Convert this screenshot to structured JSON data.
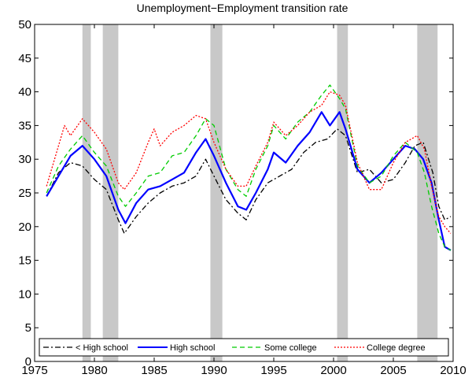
{
  "chart_data": {
    "type": "line",
    "title": "Unemployment−Employment transition rate",
    "xlabel": "",
    "ylabel": "",
    "xlim": [
      1975,
      2010
    ],
    "ylim": [
      0,
      50
    ],
    "x_ticks": [
      1975,
      1980,
      1985,
      1990,
      1995,
      2000,
      2005,
      2010
    ],
    "y_ticks": [
      0,
      5,
      10,
      15,
      20,
      25,
      30,
      35,
      40,
      45,
      50
    ],
    "grid": false,
    "legend_position": "bottom",
    "recession_shading": [
      [
        1979.0,
        1979.7
      ],
      [
        1980.7,
        1982.0
      ],
      [
        1989.7,
        1990.7
      ],
      [
        2000.3,
        2001.2
      ],
      [
        2007.0,
        2008.7
      ]
    ],
    "series": [
      {
        "name": "< High school",
        "color": "#000000",
        "dash": "dash-dot",
        "points": [
          [
            1976.0,
            24.5
          ],
          [
            1977.0,
            28.0
          ],
          [
            1978.0,
            29.5
          ],
          [
            1979.0,
            29.0
          ],
          [
            1980.0,
            27.0
          ],
          [
            1981.0,
            25.5
          ],
          [
            1982.0,
            21.0
          ],
          [
            1982.5,
            19.0
          ],
          [
            1983.5,
            21.5
          ],
          [
            1984.5,
            23.5
          ],
          [
            1985.5,
            25.0
          ],
          [
            1986.5,
            26.0
          ],
          [
            1987.5,
            26.5
          ],
          [
            1988.5,
            27.5
          ],
          [
            1989.3,
            30.0
          ],
          [
            1990.0,
            27.5
          ],
          [
            1991.0,
            24.0
          ],
          [
            1992.0,
            22.0
          ],
          [
            1992.7,
            21.0
          ],
          [
            1993.5,
            24.0
          ],
          [
            1994.5,
            26.5
          ],
          [
            1995.5,
            27.5
          ],
          [
            1996.5,
            28.5
          ],
          [
            1997.5,
            31.0
          ],
          [
            1998.5,
            32.5
          ],
          [
            1999.5,
            33.0
          ],
          [
            2000.3,
            34.5
          ],
          [
            2001.0,
            33.5
          ],
          [
            2002.0,
            28.0
          ],
          [
            2003.0,
            28.5
          ],
          [
            2004.0,
            26.5
          ],
          [
            2005.0,
            27.0
          ],
          [
            2006.0,
            29.5
          ],
          [
            2006.8,
            32.0
          ],
          [
            2007.5,
            32.5
          ],
          [
            2008.3,
            28.0
          ],
          [
            2008.8,
            23.0
          ],
          [
            2009.3,
            21.0
          ],
          [
            2009.8,
            21.5
          ]
        ]
      },
      {
        "name": "High school",
        "color": "#0000ff",
        "dash": "solid",
        "points": [
          [
            1976.0,
            24.5
          ],
          [
            1977.0,
            27.5
          ],
          [
            1978.0,
            30.5
          ],
          [
            1979.0,
            32.0
          ],
          [
            1980.0,
            30.0
          ],
          [
            1981.0,
            27.5
          ],
          [
            1982.0,
            22.5
          ],
          [
            1982.6,
            20.5
          ],
          [
            1983.5,
            23.5
          ],
          [
            1984.5,
            25.5
          ],
          [
            1985.5,
            26.0
          ],
          [
            1986.5,
            27.0
          ],
          [
            1987.5,
            28.0
          ],
          [
            1988.5,
            31.0
          ],
          [
            1989.3,
            33.0
          ],
          [
            1990.0,
            30.5
          ],
          [
            1991.0,
            26.5
          ],
          [
            1992.0,
            23.0
          ],
          [
            1992.7,
            22.5
          ],
          [
            1993.5,
            25.0
          ],
          [
            1994.5,
            28.5
          ],
          [
            1995.0,
            31.0
          ],
          [
            1996.0,
            29.5
          ],
          [
            1997.0,
            32.0
          ],
          [
            1998.0,
            34.0
          ],
          [
            1999.0,
            37.0
          ],
          [
            1999.7,
            35.0
          ],
          [
            2000.5,
            37.0
          ],
          [
            2001.0,
            34.5
          ],
          [
            2002.0,
            28.5
          ],
          [
            2003.0,
            26.5
          ],
          [
            2004.0,
            28.0
          ],
          [
            2005.0,
            30.0
          ],
          [
            2006.0,
            32.0
          ],
          [
            2006.8,
            31.5
          ],
          [
            2007.5,
            30.0
          ],
          [
            2008.2,
            26.5
          ],
          [
            2008.8,
            21.0
          ],
          [
            2009.3,
            17.0
          ],
          [
            2009.8,
            16.5
          ]
        ]
      },
      {
        "name": "Some college",
        "color": "#00cc00",
        "dash": "dashed",
        "points": [
          [
            1976.0,
            25.0
          ],
          [
            1977.0,
            29.0
          ],
          [
            1978.0,
            31.5
          ],
          [
            1979.0,
            33.5
          ],
          [
            1980.0,
            31.0
          ],
          [
            1981.0,
            29.0
          ],
          [
            1982.0,
            24.5
          ],
          [
            1982.6,
            23.0
          ],
          [
            1983.5,
            25.0
          ],
          [
            1984.5,
            27.5
          ],
          [
            1985.5,
            28.0
          ],
          [
            1986.5,
            30.5
          ],
          [
            1987.5,
            31.0
          ],
          [
            1988.5,
            33.5
          ],
          [
            1989.3,
            36.0
          ],
          [
            1990.0,
            35.0
          ],
          [
            1991.0,
            28.5
          ],
          [
            1992.0,
            25.5
          ],
          [
            1992.7,
            24.5
          ],
          [
            1993.5,
            28.5
          ],
          [
            1994.5,
            32.0
          ],
          [
            1995.0,
            35.0
          ],
          [
            1996.0,
            33.0
          ],
          [
            1997.0,
            35.5
          ],
          [
            1998.0,
            37.0
          ],
          [
            1999.0,
            39.5
          ],
          [
            1999.7,
            41.0
          ],
          [
            2000.5,
            39.0
          ],
          [
            2001.0,
            37.5
          ],
          [
            2002.0,
            29.0
          ],
          [
            2003.0,
            26.5
          ],
          [
            2004.0,
            27.5
          ],
          [
            2005.0,
            30.5
          ],
          [
            2006.0,
            32.5
          ],
          [
            2007.0,
            31.0
          ],
          [
            2007.6,
            28.0
          ],
          [
            2008.2,
            23.0
          ],
          [
            2008.8,
            19.0
          ],
          [
            2009.3,
            17.0
          ],
          [
            2009.8,
            16.5
          ]
        ]
      },
      {
        "name": "College degree",
        "color": "#ff0000",
        "dash": "dotted",
        "points": [
          [
            1976.0,
            26.0
          ],
          [
            1977.0,
            32.0
          ],
          [
            1977.5,
            35.0
          ],
          [
            1978.0,
            33.5
          ],
          [
            1979.0,
            36.0
          ],
          [
            1980.0,
            34.0
          ],
          [
            1981.0,
            31.5
          ],
          [
            1982.0,
            26.5
          ],
          [
            1982.5,
            25.5
          ],
          [
            1983.5,
            28.0
          ],
          [
            1984.5,
            32.5
          ],
          [
            1985.0,
            34.5
          ],
          [
            1985.5,
            32.0
          ],
          [
            1986.5,
            34.0
          ],
          [
            1987.5,
            35.0
          ],
          [
            1988.5,
            36.5
          ],
          [
            1989.3,
            36.0
          ],
          [
            1990.0,
            32.5
          ],
          [
            1991.0,
            28.5
          ],
          [
            1992.0,
            26.0
          ],
          [
            1992.7,
            26.0
          ],
          [
            1993.5,
            29.0
          ],
          [
            1994.5,
            32.5
          ],
          [
            1995.0,
            35.5
          ],
          [
            1996.0,
            33.5
          ],
          [
            1997.0,
            35.0
          ],
          [
            1998.0,
            37.0
          ],
          [
            1999.0,
            38.0
          ],
          [
            1999.7,
            40.0
          ],
          [
            2000.5,
            39.5
          ],
          [
            2001.0,
            38.0
          ],
          [
            2002.0,
            29.5
          ],
          [
            2003.0,
            25.5
          ],
          [
            2004.0,
            25.5
          ],
          [
            2005.0,
            29.5
          ],
          [
            2006.0,
            32.5
          ],
          [
            2007.0,
            33.5
          ],
          [
            2007.6,
            31.5
          ],
          [
            2008.2,
            26.0
          ],
          [
            2008.8,
            21.5
          ],
          [
            2009.3,
            20.0
          ],
          [
            2009.8,
            19.0
          ]
        ]
      }
    ]
  }
}
